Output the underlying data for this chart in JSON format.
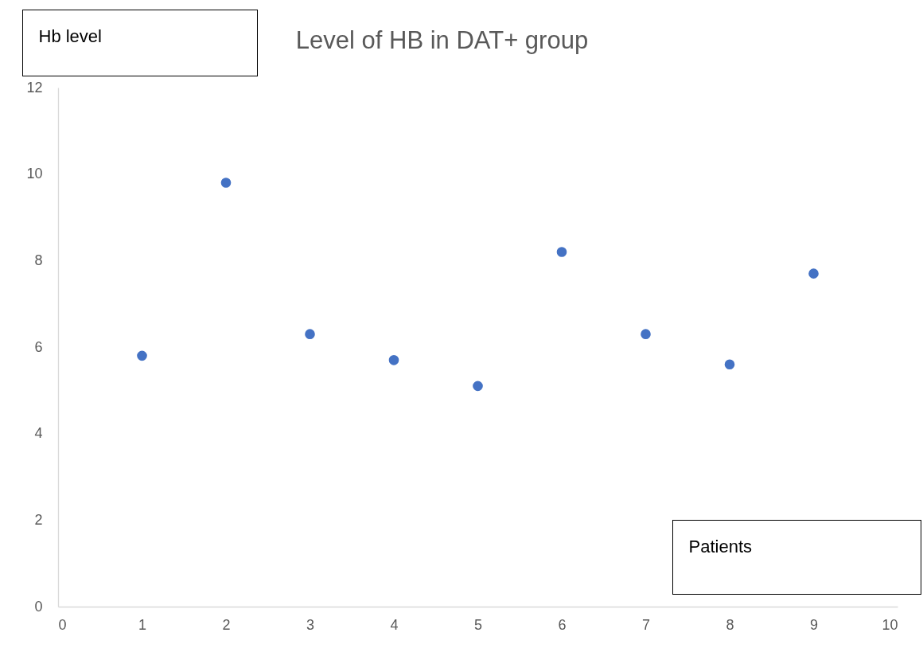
{
  "chart_data": {
    "type": "scatter",
    "title": "Level of HB in DAT+ group",
    "xlabel": "Patients",
    "ylabel": "Hb level",
    "x": [
      1,
      2,
      3,
      4,
      5,
      6,
      7,
      8,
      9
    ],
    "series": [
      {
        "color": "#4472c4",
        "values": [
          5.8,
          9.8,
          6.3,
          5.7,
          5.1,
          8.2,
          6.3,
          5.6,
          7.7
        ]
      }
    ],
    "xlim": [
      0,
      10
    ],
    "xticks": [
      0,
      1,
      2,
      3,
      4,
      5,
      6,
      7,
      8,
      9,
      10
    ],
    "ylim": [
      0,
      12
    ],
    "yticks": [
      0,
      2,
      4,
      6,
      8,
      10,
      12
    ],
    "marker": "circle"
  }
}
